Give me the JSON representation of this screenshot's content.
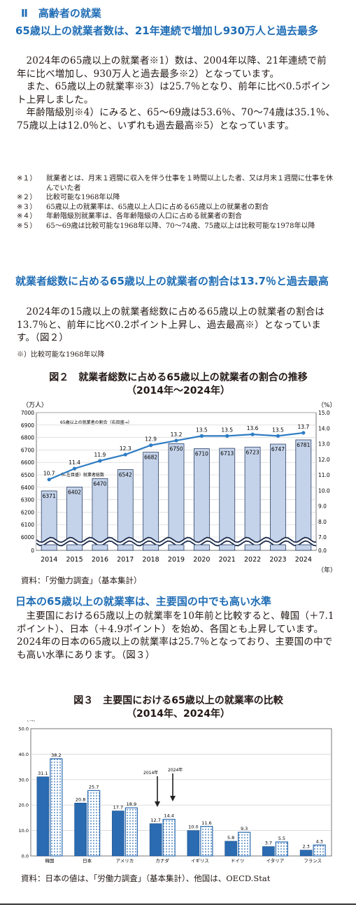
{
  "section_title": "Ⅱ　高齢者の就業",
  "block1": {
    "heading": "65歳以上の就業者数は、21年連続で増加し930万人と過去最多",
    "paragraphs": [
      "2024年の65歳以上の就業者※1）数は、2004年以降、21年連続で前年に比べ増加し、930万人と過去最多※2）となっています。",
      "また、65歳以上の就業率※3）は25.7％となり、前年に比べ0.5ポイント上昇しました。",
      "年齢階級別※4）にみると、65～69歳は53.6％、70～74歳は35.1％、75歳以上は12.0％と、いずれも過去最高※5）となっています。"
    ],
    "notes": [
      {
        "k": "※１）",
        "t": "就業者とは、月末１週間に収入を伴う仕事を１時間以上した者、又は月末１週間に仕事を休んでいた者"
      },
      {
        "k": "※２）",
        "t": "比較可能な1968年以降"
      },
      {
        "k": "※３）",
        "t": "65歳以上の就業率は、65歳以上人口に占める65歳以上の就業者の割合"
      },
      {
        "k": "※４）",
        "t": "年齢階級別就業率は、各年齢階級の人口に占める就業者の割合"
      },
      {
        "k": "※５）",
        "t": "65～69歳は比較可能な1968年以降、70～74歳、75歳以上は比較可能な1978年以降"
      }
    ]
  },
  "block2": {
    "heading": "就業者総数に占める65歳以上の就業者の割合は13.7％と過去最高",
    "paragraph": "2024年の15歳以上の就業者総数に占める65歳以上の就業者の割合は13.7％と、前年に比べ0.2ポイント上昇し、過去最高※）となっています。（図２）",
    "note": "※）比較可能な1968年以降"
  },
  "fig2": {
    "title_line1": "図２　就業者総数に占める65歳以上の就業者の割合の推移",
    "title_line2": "（2014年～2024年）",
    "left_unit": "（万人）",
    "right_unit": "（%）",
    "year_unit": "（年）",
    "line_legend": "65歳以上の就業者の割合（右目盛→）",
    "bar_legend": "（←左目盛）就業者総数",
    "source": "資料：「労働力調査」（基本集計）"
  },
  "block3": {
    "heading": "日本の65歳以上の就業率は、主要国の中でも高い水準",
    "paragraph": "主要国における65歳以上の就業率を10年前と比較すると、韓国（＋7.1ポイント）、日本（＋4.9ポイント）を始め、各国とも上昇しています。2024年の日本の65歳以上の就業率は25.7％となっており、主要国の中でも高い水準にあります。（図３）"
  },
  "fig3": {
    "title_line1": "図３　主要国における65歳以上の就業率の比較",
    "title_line2": "（2014年、2024年）",
    "unit": "（%）",
    "annot_2014": "2014年",
    "annot_2024": "2024年",
    "source": "資料：日本の値は、「労働力調査」（基本集計）、他国は、OECD.Stat"
  },
  "chart_data": [
    {
      "type": "bar",
      "title": "図２　就業者総数に占める65歳以上の就業者の割合の推移（2014年～2024年）",
      "categories": [
        "2014",
        "2015",
        "2016",
        "2017",
        "2018",
        "2019",
        "2020",
        "2021",
        "2022",
        "2023",
        "2024"
      ],
      "series": [
        {
          "name": "就業者総数",
          "axis": "left",
          "kind": "bar",
          "values": [
            6371,
            6402,
            6470,
            6542,
            6682,
            6750,
            6710,
            6713,
            6723,
            6747,
            6781
          ]
        },
        {
          "name": "65歳以上の就業者の割合",
          "axis": "right",
          "kind": "line",
          "values": [
            10.7,
            11.4,
            11.9,
            12.3,
            12.9,
            13.2,
            13.5,
            13.5,
            13.6,
            13.5,
            13.7
          ]
        }
      ],
      "ylim_left": [
        6000,
        7000
      ],
      "yticks_left": [
        "0",
        "6000",
        "6100",
        "6200",
        "6300",
        "6400",
        "6500",
        "6600",
        "6700",
        "6800",
        "6900",
        "7000"
      ],
      "ylim_right": [
        7.0,
        15.0
      ],
      "yticks_right": [
        "0.0",
        "7.0",
        "8.0",
        "9.0",
        "10.0",
        "11.0",
        "12.0",
        "13.0",
        "14.0",
        "15.0"
      ],
      "axis_break": true,
      "colors": {
        "bar": "#c5d3ea",
        "line": "#2e7cc4"
      },
      "grid": true
    },
    {
      "type": "bar",
      "title": "図３　主要国における65歳以上の就業率の比較（2014年、2024年）",
      "categories": [
        "韓国",
        "日本",
        "アメリカ",
        "カナダ",
        "イギリス",
        "ドイツ",
        "イタリア",
        "フランス"
      ],
      "series": [
        {
          "name": "2014年",
          "values": [
            31.1,
            20.8,
            17.7,
            12.7,
            10.0,
            5.8,
            3.7,
            2.3
          ]
        },
        {
          "name": "2024年",
          "values": [
            38.2,
            25.7,
            18.9,
            14.4,
            11.6,
            9.3,
            5.5,
            4.3
          ]
        }
      ],
      "ylim": [
        0,
        50
      ],
      "yticks": [
        "0.0",
        "10.0",
        "20.0",
        "30.0",
        "40.0",
        "50.0"
      ],
      "colors": {
        "2014": "#2a6bb1",
        "2024": "dotted-blue"
      },
      "grid": true
    }
  ]
}
